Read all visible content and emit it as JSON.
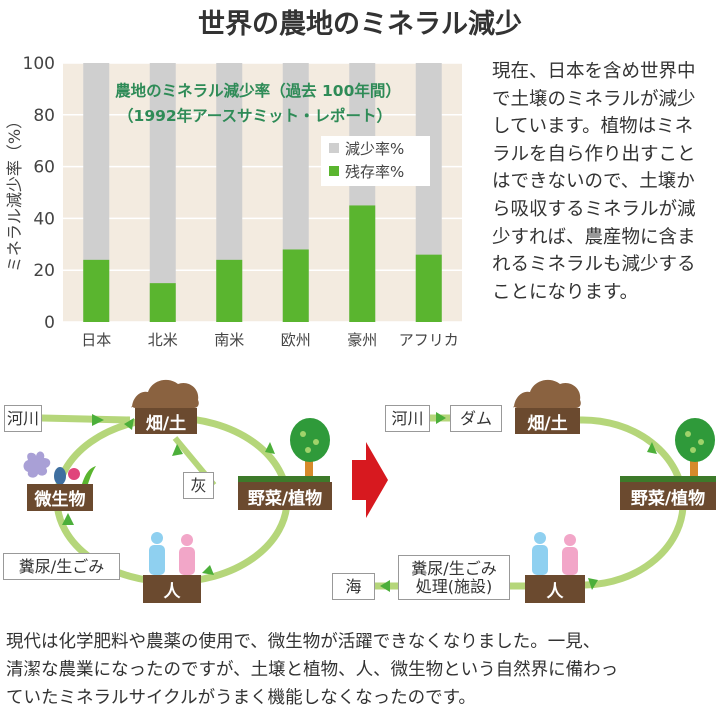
{
  "title": "世界の農地のミネラル減少",
  "chart_data": {
    "type": "bar",
    "stacked": true,
    "title": "農地のミネラル減少率（過去 100年間）",
    "subtitle": "（1992年アースサミット・レポート）",
    "ylabel": "ミネラル減少率（%）",
    "xlabel": "",
    "ylim": [
      0,
      100
    ],
    "yticks": [
      0,
      20,
      40,
      60,
      80,
      100
    ],
    "grid": true,
    "legend_position": "right",
    "categories": [
      "日本",
      "北米",
      "南米",
      "欧州",
      "豪州",
      "アフリカ"
    ],
    "series": [
      {
        "name": "残存率%",
        "color": "#5ab52f",
        "values": [
          24,
          15,
          24,
          28,
          45,
          26
        ]
      },
      {
        "name": "減少率%",
        "color": "#cfcfcf",
        "values": [
          76,
          85,
          76,
          72,
          55,
          74
        ]
      }
    ],
    "background": "#f3ebe0",
    "title_color": "#2e8b57"
  },
  "paragraph": [
    "現在、日本を含め世界中",
    "で土壌のミネラルが減少",
    "しています。植物はミネ",
    "ラルを自ら作り出すこと",
    "はできないので、土壌か",
    "ら吸収するミネラルが減",
    "少すれば、農産物に含ま",
    "れるミネラルも減少する",
    "ことになります。"
  ],
  "diagram_before": {
    "river": "河川",
    "field": "畑/土",
    "microbe": "微生物",
    "ash": "灰",
    "plants": "野菜/植物",
    "waste": "糞尿/生ごみ",
    "people": "人"
  },
  "diagram_after": {
    "river": "河川",
    "dam": "ダム",
    "field": "畑/土",
    "plants": "野菜/植物",
    "people": "人",
    "waste_line1": "糞尿/生ごみ",
    "waste_line2": "処理(施設)",
    "sea": "海"
  },
  "colors": {
    "cycle": "#b5d67a",
    "arrow": "#4caf3a",
    "label_box": "#6b4a2f",
    "transition_arrow": "#d7191f"
  },
  "bottom_text": [
    "現代は化学肥料や農薬の使用で、微生物が活躍できなくなりました。一見、",
    "清潔な農業になったのですが、土壌と植物、人、微生物という自然界に備わっ",
    "ていたミネラルサイクルがうまく機能しなくなったのです。"
  ]
}
